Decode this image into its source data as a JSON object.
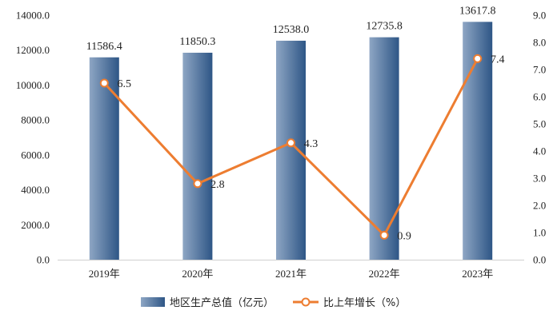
{
  "chart_data": {
    "type": "bar",
    "title": "",
    "categories": [
      "2019年",
      "2020年",
      "2021年",
      "2022年",
      "2023年"
    ],
    "series": [
      {
        "name": "地区生产总值（亿元）",
        "type": "bar",
        "axis": "left",
        "values": [
          11586.4,
          11850.3,
          12538.0,
          12735.8,
          13617.8
        ],
        "labels": [
          "11586.4",
          "11850.3",
          "12538.0",
          "12735.8",
          "13617.8"
        ],
        "color_light": "#8ea6c4",
        "color_dark": "#2e5686"
      },
      {
        "name": "比上年增长（%）",
        "type": "line",
        "axis": "right",
        "values": [
          6.5,
          2.8,
          4.3,
          0.9,
          7.4
        ],
        "labels": [
          "6.5",
          "2.8",
          "4.3",
          "0.9",
          "7.4"
        ],
        "color": "#ed7d31"
      }
    ],
    "y_left": {
      "min": 0,
      "max": 14000,
      "step": 2000,
      "ticks": [
        "0.0",
        "2000.0",
        "4000.0",
        "6000.0",
        "8000.0",
        "10000.0",
        "12000.0",
        "14000.0"
      ]
    },
    "y_right": {
      "min": 0,
      "max": 9,
      "step": 1,
      "ticks": [
        "0.0",
        "1.0",
        "2.0",
        "3.0",
        "4.0",
        "5.0",
        "6.0",
        "7.0",
        "8.0",
        "9.0"
      ]
    },
    "grid": false,
    "legend": "bottom-center"
  }
}
